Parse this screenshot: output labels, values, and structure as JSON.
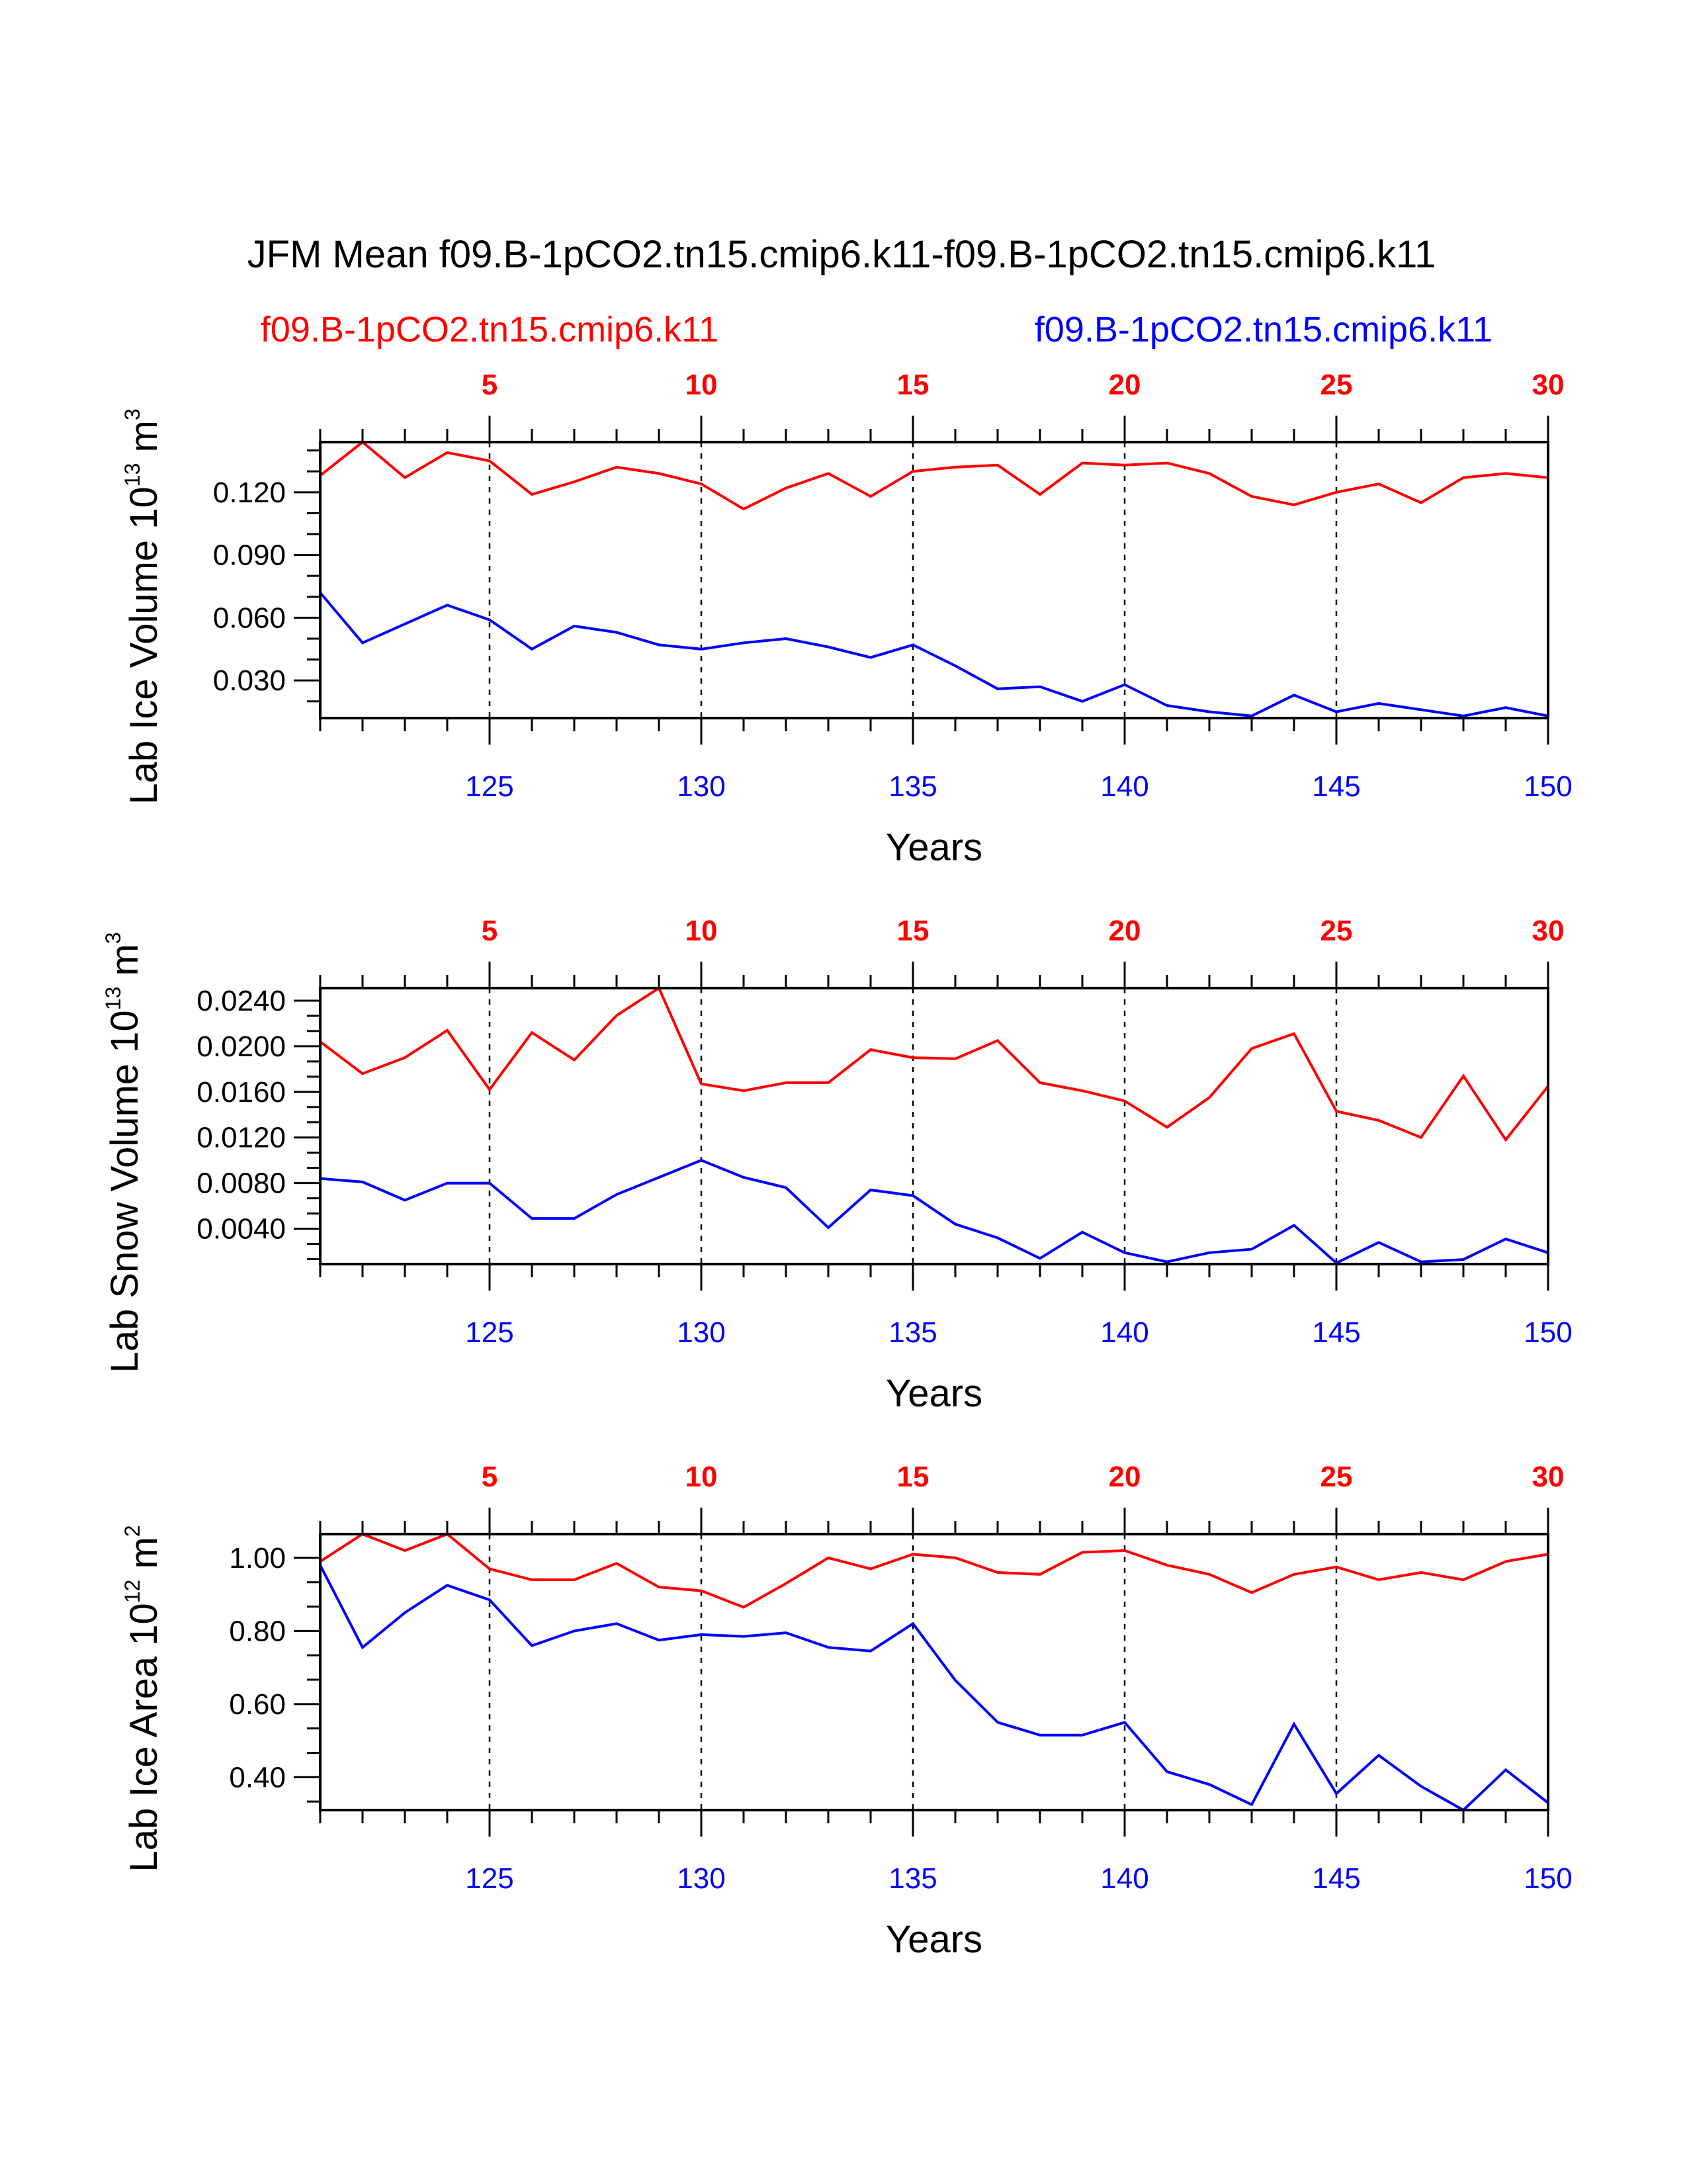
{
  "title": "JFM Mean f09.B-1pCO2.tn15.cmip6.k11-f09.B-1pCO2.tn15.cmip6.k11",
  "subtitle_left": "f09.B-1pCO2.tn15.cmip6.k11",
  "subtitle_right": "f09.B-1pCO2.tn15.cmip6.k11",
  "colors": {
    "red_series": "#ff0000",
    "blue_series": "#0000ff",
    "axis": "#000000"
  },
  "chart_data": [
    {
      "type": "line",
      "ylabel": "Lab Ice Volume 10",
      "ylabel_exp": "13",
      "ylabel_unit": " m",
      "ylabel_unit_exp": "3",
      "xlabel": "Years",
      "xlim": [
        121,
        150
      ],
      "ylim": [
        0.012,
        0.144
      ],
      "yticks": [
        0.03,
        0.06,
        0.09,
        0.12
      ],
      "ytick_labels": [
        "0.030",
        "0.060",
        "0.090",
        "0.120"
      ],
      "x_bottom_ticks": [
        125,
        130,
        135,
        140,
        145,
        150
      ],
      "x_bottom_tick_labels": [
        "125",
        "130",
        "135",
        "140",
        "145",
        "150"
      ],
      "x_top_tick_labels": [
        "5",
        "10",
        "15",
        "20",
        "25",
        "30"
      ],
      "x": [
        121,
        122,
        123,
        124,
        125,
        126,
        127,
        128,
        129,
        130,
        131,
        132,
        133,
        134,
        135,
        136,
        137,
        138,
        139,
        140,
        141,
        142,
        143,
        144,
        145,
        146,
        147,
        148,
        149,
        150
      ],
      "series": [
        {
          "name": "red",
          "color": "#ff0000",
          "values": [
            0.128,
            0.144,
            0.127,
            0.139,
            0.135,
            0.119,
            0.125,
            0.132,
            0.129,
            0.124,
            0.112,
            0.122,
            0.129,
            0.118,
            0.13,
            0.132,
            0.133,
            0.119,
            0.134,
            0.133,
            0.134,
            0.129,
            0.118,
            0.114,
            0.12,
            0.124,
            0.115,
            0.127,
            0.129,
            0.127
          ]
        },
        {
          "name": "blue",
          "color": "#0000ff",
          "values": [
            0.072,
            0.048,
            0.057,
            0.066,
            0.059,
            0.045,
            0.056,
            0.053,
            0.047,
            0.045,
            0.048,
            0.05,
            0.046,
            0.041,
            0.047,
            0.037,
            0.026,
            0.027,
            0.02,
            0.028,
            0.018,
            0.015,
            0.013,
            0.023,
            0.015,
            0.019,
            0.016,
            0.013,
            0.017,
            0.013
          ]
        }
      ]
    },
    {
      "type": "line",
      "ylabel": "Lab Snow Volume 10",
      "ylabel_exp": "13",
      "ylabel_unit": " m",
      "ylabel_unit_exp": "3",
      "xlabel": "Years",
      "xlim": [
        121,
        150
      ],
      "ylim": [
        0.0009,
        0.0251
      ],
      "yticks": [
        0.004,
        0.008,
        0.012,
        0.016,
        0.02,
        0.024
      ],
      "ytick_labels": [
        "0.0040",
        "0.0080",
        "0.0120",
        "0.0160",
        "0.0200",
        "0.0240"
      ],
      "x_bottom_ticks": [
        125,
        130,
        135,
        140,
        145,
        150
      ],
      "x_bottom_tick_labels": [
        "125",
        "130",
        "135",
        "140",
        "145",
        "150"
      ],
      "x_top_tick_labels": [
        "5",
        "10",
        "15",
        "20",
        "25",
        "30"
      ],
      "x": [
        121,
        122,
        123,
        124,
        125,
        126,
        127,
        128,
        129,
        130,
        131,
        132,
        133,
        134,
        135,
        136,
        137,
        138,
        139,
        140,
        141,
        142,
        143,
        144,
        145,
        146,
        147,
        148,
        149,
        150
      ],
      "series": [
        {
          "name": "red",
          "color": "#ff0000",
          "values": [
            0.0204,
            0.0176,
            0.019,
            0.0214,
            0.0162,
            0.0212,
            0.0188,
            0.0227,
            0.0251,
            0.0167,
            0.0161,
            0.0168,
            0.0168,
            0.0197,
            0.019,
            0.0189,
            0.0205,
            0.0168,
            0.0161,
            0.0152,
            0.0129,
            0.0155,
            0.0198,
            0.0211,
            0.0143,
            0.0135,
            0.012,
            0.0174,
            0.0118,
            0.0165
          ]
        },
        {
          "name": "blue",
          "color": "#0000ff",
          "values": [
            0.0084,
            0.0081,
            0.0065,
            0.008,
            0.008,
            0.0049,
            0.0049,
            0.007,
            0.0085,
            0.01,
            0.0085,
            0.0076,
            0.0041,
            0.0074,
            0.0069,
            0.0044,
            0.0032,
            0.0014,
            0.0037,
            0.0019,
            0.0011,
            0.0019,
            0.0022,
            0.0043,
            0.001,
            0.0028,
            0.0011,
            0.0013,
            0.0031,
            0.0019
          ]
        }
      ]
    },
    {
      "type": "line",
      "ylabel": "Lab Ice Area 10",
      "ylabel_exp": "12",
      "ylabel_unit": " m",
      "ylabel_unit_exp": "2",
      "xlabel": "Years",
      "xlim": [
        121,
        150
      ],
      "ylim": [
        0.31,
        1.065
      ],
      "yticks": [
        0.4,
        0.6,
        0.8,
        1.0
      ],
      "ytick_labels": [
        "0.40",
        "0.60",
        "0.80",
        "1.00"
      ],
      "x_bottom_ticks": [
        125,
        130,
        135,
        140,
        145,
        150
      ],
      "x_bottom_tick_labels": [
        "125",
        "130",
        "135",
        "140",
        "145",
        "150"
      ],
      "x_top_tick_labels": [
        "5",
        "10",
        "15",
        "20",
        "25",
        "30"
      ],
      "x": [
        121,
        122,
        123,
        124,
        125,
        126,
        127,
        128,
        129,
        130,
        131,
        132,
        133,
        134,
        135,
        136,
        137,
        138,
        139,
        140,
        141,
        142,
        143,
        144,
        145,
        146,
        147,
        148,
        149,
        150
      ],
      "series": [
        {
          "name": "red",
          "color": "#ff0000",
          "values": [
            0.99,
            1.065,
            1.02,
            1.065,
            0.97,
            0.94,
            0.94,
            0.985,
            0.92,
            0.91,
            0.865,
            0.93,
            1.0,
            0.97,
            1.01,
            1.0,
            0.96,
            0.955,
            1.015,
            1.02,
            0.98,
            0.955,
            0.905,
            0.955,
            0.975,
            0.94,
            0.96,
            0.94,
            0.99,
            1.01
          ]
        },
        {
          "name": "blue",
          "color": "#0000ff",
          "values": [
            0.98,
            0.755,
            0.85,
            0.925,
            0.885,
            0.76,
            0.8,
            0.82,
            0.775,
            0.79,
            0.785,
            0.795,
            0.755,
            0.745,
            0.82,
            0.665,
            0.55,
            0.515,
            0.515,
            0.55,
            0.415,
            0.38,
            0.325,
            0.545,
            0.355,
            0.46,
            0.375,
            0.31,
            0.42,
            0.33
          ]
        }
      ]
    }
  ]
}
